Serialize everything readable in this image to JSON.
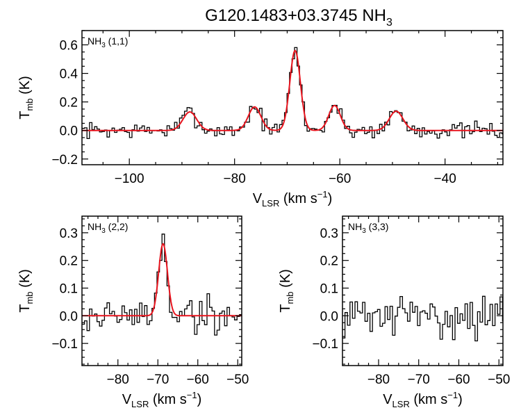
{
  "figure": {
    "title_main": "G120.1483+03.3745 NH",
    "title_sub": "3"
  },
  "chart_data": [
    {
      "type": "line",
      "id": "nh3_11",
      "annotation": "NH3 (1,1)",
      "ann_main": "NH",
      "ann_sub": "3",
      "ann_rest": " (1,1)",
      "xlabel": "V_LSR (km s^-1)",
      "ylabel": "T_mb (K)",
      "xlim": [
        -109,
        -29
      ],
      "ylim": [
        -0.24,
        0.7
      ],
      "xticks": [
        -100,
        -80,
        -60,
        -40
      ],
      "yticks": [
        -0.2,
        0.0,
        0.2,
        0.4,
        0.6
      ],
      "ytick_labels": [
        "−0.2",
        "0.0",
        "0.2",
        "0.4",
        "0.6"
      ],
      "xtick_labels": [
        "−100",
        "−80",
        "−60",
        "−40"
      ],
      "has_fit": true,
      "components": [
        {
          "center": -88.5,
          "amp": 0.13,
          "sigma": 1.3
        },
        {
          "center": -76.2,
          "amp": 0.165,
          "sigma": 1.2
        },
        {
          "center": -68.5,
          "amp": 0.56,
          "sigma": 1.0
        },
        {
          "center": -61.0,
          "amp": 0.175,
          "sigma": 1.1
        },
        {
          "center": -49.3,
          "amp": 0.135,
          "sigma": 1.3
        }
      ],
      "noise": 0.035,
      "seed": 7
    },
    {
      "type": "line",
      "id": "nh3_22",
      "annotation": "NH3 (2,2)",
      "ann_main": "NH",
      "ann_sub": "3",
      "ann_rest": " (2,2)",
      "xlabel": "V_LSR (km s^-1)",
      "ylabel": "T_mb (K)",
      "xlim": [
        -89,
        -49
      ],
      "ylim": [
        -0.18,
        0.36
      ],
      "xticks": [
        -80,
        -70,
        -60,
        -50
      ],
      "yticks": [
        -0.1,
        0.0,
        0.1,
        0.2,
        0.3
      ],
      "ytick_labels": [
        "−0.1",
        "0.0",
        "0.1",
        "0.2",
        "0.3"
      ],
      "xtick_labels": [
        "−80",
        "−70",
        "−60",
        "−50"
      ],
      "has_fit": true,
      "components": [
        {
          "center": -68.7,
          "amp": 0.26,
          "sigma": 1.1
        }
      ],
      "noise": 0.045,
      "seed": 19
    },
    {
      "type": "line",
      "id": "nh3_33",
      "annotation": "NH3 (3,3)",
      "ann_main": "NH",
      "ann_sub": "3",
      "ann_rest": " (3,3)",
      "xlabel": "V_LSR (km s^-1)",
      "ylabel": "T_mb (K)",
      "xlim": [
        -89,
        -49
      ],
      "ylim": [
        -0.18,
        0.36
      ],
      "xticks": [
        -80,
        -70,
        -60,
        -50
      ],
      "yticks": [
        -0.1,
        0.0,
        0.1,
        0.2,
        0.3
      ],
      "ytick_labels": [
        "−0.1",
        "0.0",
        "0.1",
        "0.2",
        "0.3"
      ],
      "xtick_labels": [
        "−80",
        "−70",
        "−60",
        "−50"
      ],
      "has_fit": false,
      "components": [],
      "noise": 0.045,
      "seed": 31
    }
  ],
  "axis_text": {
    "x_main": "V",
    "x_sub": "LSR",
    "x_rest": " (km s",
    "x_sup": "−1",
    "x_close": ")",
    "y_main": "T",
    "y_sub": "mb",
    "y_rest": " (K)"
  },
  "colors": {
    "data": "#000000",
    "fit": "#e8141e",
    "axis": "#000000"
  }
}
